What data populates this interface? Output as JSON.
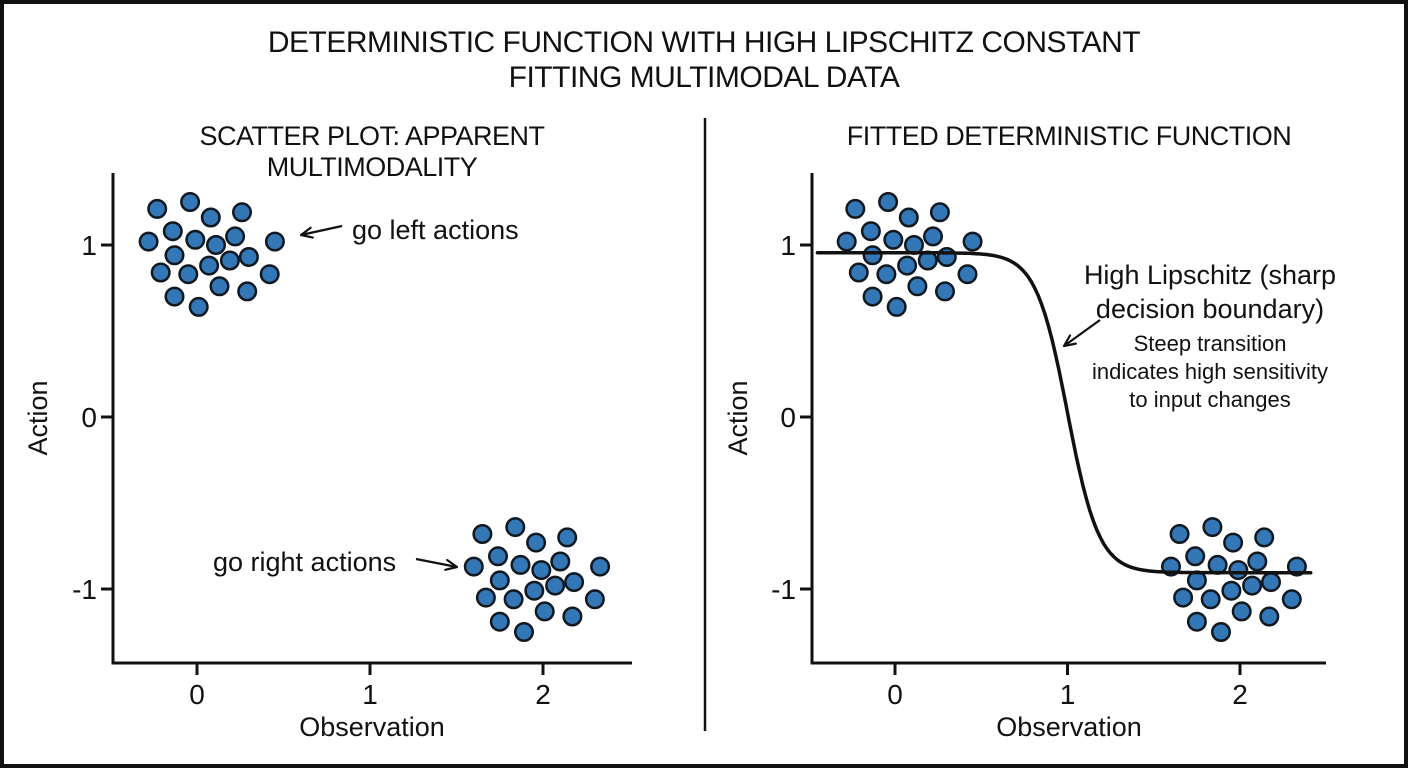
{
  "figure": {
    "title_line1": "DETERMINISTIC FUNCTION WITH HIGH LIPSCHITZ CONSTANT",
    "title_line2": "FITTING MULTIMODAL DATA"
  },
  "left_panel": {
    "title": "SCATTER PLOT: APPARENT MULTIMODALITY",
    "xlabel": "Observation",
    "ylabel": "Action",
    "annotations": {
      "go_left": "go left actions",
      "go_right": "go right actions"
    }
  },
  "right_panel": {
    "title": "FITTED DETERMINISTIC FUNCTION",
    "xlabel": "Observation",
    "ylabel": "Action",
    "annotations": {
      "main_line1": "High Lipschitz (sharp",
      "main_line2": "decision boundary)",
      "sub_line1": "Steep transition",
      "sub_line2": "indicates high sensitivity",
      "sub_line3": "to input changes"
    }
  },
  "colors": {
    "dot_fill": "#3377b6",
    "dot_edge": "#101820",
    "line": "#111111",
    "text": "#111111",
    "background": "#ffffff"
  },
  "chart_data": [
    {
      "type": "scatter",
      "title": "SCATTER PLOT: APPARENT MULTIMODALITY",
      "xlabel": "Observation",
      "ylabel": "Action",
      "xlim": [
        -0.49,
        2.51
      ],
      "ylim": [
        -1.43,
        1.42
      ],
      "xticks": [
        0,
        1,
        2
      ],
      "yticks": [
        1,
        0,
        -1
      ],
      "grid": false,
      "legend": "none",
      "series": [
        {
          "name": "go left actions",
          "points": [
            [
              -0.23,
              1.21
            ],
            [
              -0.04,
              1.25
            ],
            [
              0.08,
              1.16
            ],
            [
              0.26,
              1.19
            ],
            [
              -0.14,
              1.08
            ],
            [
              -0.28,
              1.02
            ],
            [
              -0.01,
              1.03
            ],
            [
              0.11,
              1.0
            ],
            [
              0.22,
              1.05
            ],
            [
              0.45,
              1.02
            ],
            [
              -0.13,
              0.94
            ],
            [
              0.07,
              0.88
            ],
            [
              0.19,
              0.91
            ],
            [
              0.3,
              0.93
            ],
            [
              -0.21,
              0.84
            ],
            [
              -0.05,
              0.83
            ],
            [
              0.42,
              0.83
            ],
            [
              0.13,
              0.76
            ],
            [
              0.29,
              0.73
            ],
            [
              -0.13,
              0.7
            ],
            [
              0.01,
              0.64
            ]
          ]
        },
        {
          "name": "go right actions",
          "points": [
            [
              1.65,
              -0.68
            ],
            [
              1.84,
              -0.64
            ],
            [
              1.96,
              -0.73
            ],
            [
              2.14,
              -0.7
            ],
            [
              1.74,
              -0.81
            ],
            [
              1.6,
              -0.87
            ],
            [
              1.87,
              -0.86
            ],
            [
              1.99,
              -0.89
            ],
            [
              2.1,
              -0.84
            ],
            [
              2.33,
              -0.87
            ],
            [
              1.75,
              -0.95
            ],
            [
              1.95,
              -1.01
            ],
            [
              2.07,
              -0.98
            ],
            [
              2.18,
              -0.96
            ],
            [
              1.67,
              -1.05
            ],
            [
              1.83,
              -1.06
            ],
            [
              2.3,
              -1.06
            ],
            [
              2.01,
              -1.13
            ],
            [
              2.17,
              -1.16
            ],
            [
              1.75,
              -1.19
            ],
            [
              1.89,
              -1.25
            ]
          ]
        }
      ],
      "annotations": [
        {
          "text": "go left actions",
          "arrow_points_to": [
            0.52,
            1.03
          ]
        },
        {
          "text": "go right actions",
          "arrow_points_to": [
            1.53,
            -0.88
          ]
        }
      ]
    },
    {
      "type": "scatter+line",
      "title": "FITTED DETERMINISTIC FUNCTION",
      "xlabel": "Observation",
      "ylabel": "Action",
      "xlim": [
        -0.49,
        2.51
      ],
      "ylim": [
        -1.43,
        1.42
      ],
      "xticks": [
        0,
        1,
        2
      ],
      "yticks": [
        1,
        0,
        -1
      ],
      "grid": false,
      "legend": "none",
      "series": [
        {
          "name": "go left actions",
          "points": [
            [
              -0.23,
              1.21
            ],
            [
              -0.04,
              1.25
            ],
            [
              0.08,
              1.16
            ],
            [
              0.26,
              1.19
            ],
            [
              -0.14,
              1.08
            ],
            [
              -0.28,
              1.02
            ],
            [
              -0.01,
              1.03
            ],
            [
              0.11,
              1.0
            ],
            [
              0.22,
              1.05
            ],
            [
              0.45,
              1.02
            ],
            [
              -0.13,
              0.94
            ],
            [
              0.07,
              0.88
            ],
            [
              0.19,
              0.91
            ],
            [
              0.3,
              0.93
            ],
            [
              -0.21,
              0.84
            ],
            [
              -0.05,
              0.83
            ],
            [
              0.42,
              0.83
            ],
            [
              0.13,
              0.76
            ],
            [
              0.29,
              0.73
            ],
            [
              -0.13,
              0.7
            ],
            [
              0.01,
              0.64
            ]
          ]
        },
        {
          "name": "go right actions",
          "points": [
            [
              1.65,
              -0.68
            ],
            [
              1.84,
              -0.64
            ],
            [
              1.96,
              -0.73
            ],
            [
              2.14,
              -0.7
            ],
            [
              1.74,
              -0.81
            ],
            [
              1.6,
              -0.87
            ],
            [
              1.87,
              -0.86
            ],
            [
              1.99,
              -0.89
            ],
            [
              2.1,
              -0.84
            ],
            [
              2.33,
              -0.87
            ],
            [
              1.75,
              -0.95
            ],
            [
              1.95,
              -1.01
            ],
            [
              2.07,
              -0.98
            ],
            [
              2.18,
              -0.96
            ],
            [
              1.67,
              -1.05
            ],
            [
              1.83,
              -1.06
            ],
            [
              2.3,
              -1.06
            ],
            [
              2.01,
              -1.13
            ],
            [
              2.17,
              -1.16
            ],
            [
              1.75,
              -1.19
            ],
            [
              1.89,
              -1.25
            ]
          ]
        }
      ],
      "curve": {
        "name": "fitted deterministic function",
        "formula": "y = 0.025 + 0.93 * tanh(-5.5 * (x - 1.0))",
        "params": {
          "mid": 0.025,
          "amplitude": 0.93,
          "center": 1.0,
          "steepness": 5.5,
          "x_start": -0.45,
          "x_end": 2.41
        },
        "upper_plateau": 0.955,
        "lower_plateau": -0.905
      },
      "annotations": [
        {
          "text": "High Lipschitz (sharp decision boundary)",
          "arrow_points_to": [
            0.97,
            0.4
          ]
        },
        {
          "text": "Steep transition indicates high sensitivity to input changes"
        }
      ]
    }
  ]
}
